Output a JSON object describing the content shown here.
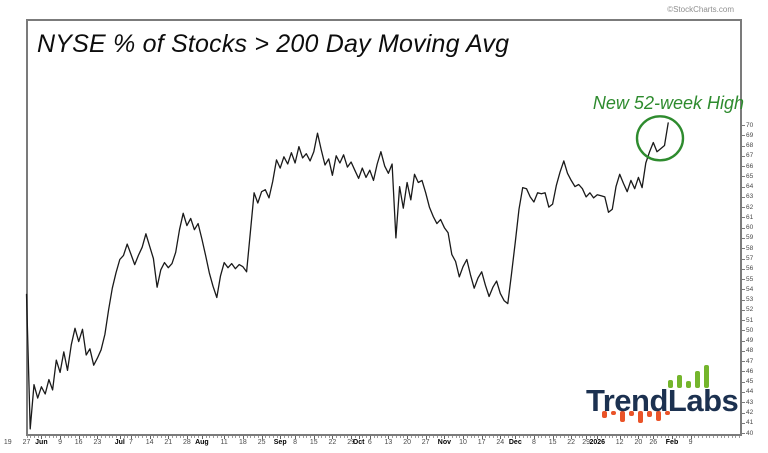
{
  "copyright": "©StockCharts.com",
  "title": "NYSE % of Stocks > 200 Day Moving Avg",
  "annotation": {
    "label": "New 52-week High",
    "color": "#2e8b2e",
    "circle": {
      "day": 169.8,
      "value": 68.7,
      "radius": 22
    }
  },
  "logo": {
    "name": "TrendLabs",
    "navy": "#1c3150",
    "green": "#74b52c",
    "orange": "#ea5328",
    "green_bar_heights": [
      8,
      13,
      7,
      17,
      23
    ],
    "orange_bar_heights": [
      7,
      4,
      11,
      5,
      12,
      6,
      10,
      4
    ]
  },
  "chart_data": {
    "type": "line",
    "title": "NYSE % of Stocks > 200 Day Moving Avg",
    "series_name": "NYSE percent of stocks above 200-day moving average",
    "line_color": "#1a1a1a",
    "grid": false,
    "legend": "none",
    "y_axis": {
      "min": 40,
      "max": 70,
      "step": 1,
      "side": "right"
    },
    "x_axis": {
      "note": "weekly date ticks, bold = month/year start",
      "ticks": [
        [
          "19",
          -5,
          0
        ],
        [
          "27",
          0,
          0
        ],
        [
          "Jun",
          4,
          1
        ],
        [
          "9",
          9,
          0
        ],
        [
          "16",
          14,
          0
        ],
        [
          "23",
          19,
          0
        ],
        [
          "Jul",
          25,
          1
        ],
        [
          "7",
          28,
          0
        ],
        [
          "14",
          33,
          0
        ],
        [
          "21",
          38,
          0
        ],
        [
          "28",
          43,
          0
        ],
        [
          "Aug",
          47,
          1
        ],
        [
          "11",
          53,
          0
        ],
        [
          "18",
          58,
          0
        ],
        [
          "25",
          63,
          0
        ],
        [
          "Sep",
          68,
          1
        ],
        [
          "8",
          72,
          0
        ],
        [
          "15",
          77,
          0
        ],
        [
          "22",
          82,
          0
        ],
        [
          "29",
          87,
          0
        ],
        [
          "Oct",
          89,
          1
        ],
        [
          "6",
          92,
          0
        ],
        [
          "13",
          97,
          0
        ],
        [
          "20",
          102,
          0
        ],
        [
          "27",
          107,
          0
        ],
        [
          "Nov",
          112,
          1
        ],
        [
          "10",
          117,
          0
        ],
        [
          "17",
          122,
          0
        ],
        [
          "24",
          127,
          0
        ],
        [
          "Dec",
          131,
          1
        ],
        [
          "8",
          136,
          0
        ],
        [
          "15",
          141,
          0
        ],
        [
          "22",
          146,
          0
        ],
        [
          "29",
          150,
          0
        ],
        [
          "2026",
          153,
          1
        ],
        [
          "12",
          159,
          0
        ],
        [
          "20",
          164,
          0
        ],
        [
          "26",
          168,
          0
        ],
        [
          "Feb",
          173,
          1
        ],
        [
          "9",
          178,
          0
        ]
      ]
    },
    "values": [
      53.5,
      40.4,
      44.7,
      43.4,
      44.5,
      43.8,
      45.2,
      44.2,
      47.1,
      45.9,
      47.9,
      46.1,
      48.6,
      50.2,
      48.9,
      50.1,
      47.6,
      48.2,
      46.6,
      47.3,
      48.1,
      49.6,
      52.0,
      54.1,
      55.6,
      56.9,
      57.3,
      58.4,
      57.4,
      56.4,
      57.3,
      58.1,
      59.4,
      58.2,
      57.0,
      54.2,
      55.9,
      56.6,
      56.1,
      56.5,
      57.6,
      59.8,
      61.4,
      60.2,
      60.9,
      59.8,
      60.4,
      58.9,
      57.3,
      55.6,
      54.3,
      53.2,
      55.3,
      56.6,
      56.1,
      56.5,
      56.0,
      56.4,
      56.2,
      55.7,
      59.6,
      63.4,
      62.4,
      63.5,
      63.7,
      62.9,
      64.5,
      66.6,
      65.8,
      66.9,
      66.2,
      67.3,
      66.3,
      67.9,
      66.8,
      67.2,
      66.5,
      67.4,
      69.2,
      67.6,
      66.1,
      66.7,
      65.1,
      67.0,
      66.3,
      67.1,
      65.9,
      66.4,
      65.6,
      64.8,
      65.8,
      64.9,
      65.6,
      64.6,
      66.2,
      67.4,
      66.0,
      65.3,
      66.2,
      59.0,
      64.0,
      61.9,
      64.4,
      62.7,
      65.2,
      64.4,
      64.6,
      63.4,
      62.0,
      61.1,
      60.4,
      60.8,
      60.0,
      59.5,
      57.4,
      56.7,
      55.2,
      56.2,
      56.9,
      55.4,
      54.1,
      55.1,
      55.7,
      54.4,
      53.3,
      54.2,
      54.8,
      53.6,
      52.9,
      52.6,
      55.5,
      58.6,
      61.8,
      63.9,
      63.8,
      63.0,
      62.5,
      63.4,
      63.3,
      63.4,
      62.0,
      62.3,
      64.1,
      65.4,
      66.5,
      65.3,
      64.6,
      64.0,
      64.2,
      63.8,
      63.0,
      63.4,
      62.9,
      63.2,
      63.1,
      63.0,
      61.5,
      61.8,
      64.0,
      65.2,
      64.3,
      63.5,
      64.6,
      63.8,
      64.9,
      63.9,
      66.3,
      67.4,
      68.3,
      67.4,
      67.7,
      68.0,
      70.2
    ]
  }
}
